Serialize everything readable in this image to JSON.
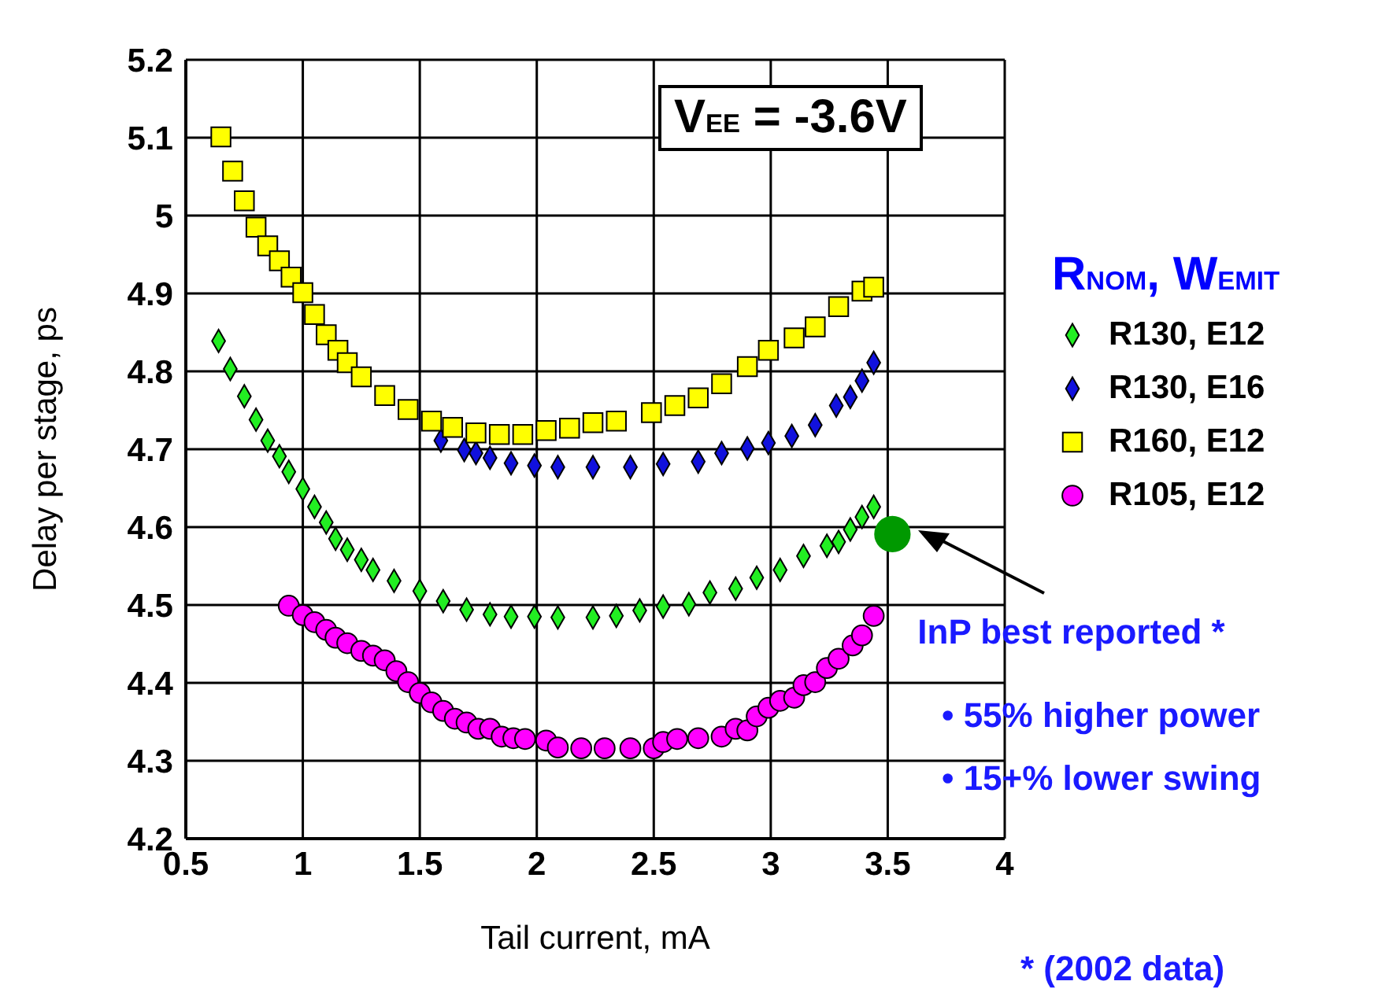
{
  "chart_data": {
    "type": "scatter",
    "xlabel": "Tail current, mA",
    "ylabel": "Delay per stage, ps",
    "legend_title": "R$_{NOM}$,  W$_{EMIT}$",
    "xlim": [
      0.5,
      4
    ],
    "xticks": [
      0.5,
      1,
      1.5,
      2,
      2.5,
      3,
      3.5,
      4
    ],
    "ylim": [
      4.2,
      5.2
    ],
    "yticks": [
      4.2,
      4.3,
      4.4,
      4.5,
      4.6,
      4.7,
      4.8,
      4.9,
      5,
      5.1,
      5.2
    ],
    "grid": true,
    "legend": "right",
    "series": [
      {
        "name": "R130, E12",
        "color": "#22ee22",
        "marker": "diamond",
        "x": [
          0.64,
          0.69,
          0.75,
          0.8,
          0.85,
          0.9,
          0.94,
          1.0,
          1.05,
          1.1,
          1.14,
          1.19,
          1.25,
          1.3,
          1.39,
          1.5,
          1.6,
          1.7,
          1.8,
          1.89,
          1.99,
          2.09,
          2.24,
          2.34,
          2.44,
          2.54,
          2.65,
          2.74,
          2.85,
          2.94,
          3.04,
          3.14,
          3.24,
          3.29,
          3.34,
          3.39,
          3.44
        ],
        "values": [
          4.839,
          4.803,
          4.768,
          4.738,
          4.711,
          4.691,
          4.671,
          4.649,
          4.626,
          4.606,
          4.585,
          4.571,
          4.558,
          4.545,
          4.531,
          4.518,
          4.505,
          4.494,
          4.488,
          4.485,
          4.485,
          4.484,
          4.484,
          4.486,
          4.493,
          4.498,
          4.501,
          4.516,
          4.521,
          4.535,
          4.545,
          4.563,
          4.576,
          4.581,
          4.597,
          4.613,
          4.626
        ]
      },
      {
        "name": "R130, E16",
        "color": "#1111dd",
        "marker": "diamond",
        "x": [
          1.59,
          1.69,
          1.74,
          1.8,
          1.89,
          1.99,
          2.09,
          2.24,
          2.4,
          2.54,
          2.69,
          2.79,
          2.9,
          2.99,
          3.09,
          3.19,
          3.28,
          3.34,
          3.39,
          3.44
        ],
        "values": [
          4.711,
          4.699,
          4.695,
          4.689,
          4.682,
          4.679,
          4.677,
          4.677,
          4.677,
          4.681,
          4.684,
          4.695,
          4.701,
          4.708,
          4.717,
          4.731,
          4.756,
          4.767,
          4.788,
          4.811
        ]
      },
      {
        "name": "R160, E12",
        "color": "#ffff00",
        "marker": "square",
        "x": [
          0.65,
          0.7,
          0.75,
          0.8,
          0.85,
          0.9,
          0.95,
          1.0,
          1.05,
          1.1,
          1.15,
          1.19,
          1.25,
          1.35,
          1.45,
          1.55,
          1.64,
          1.74,
          1.84,
          1.94,
          2.04,
          2.14,
          2.24,
          2.34,
          2.49,
          2.59,
          2.69,
          2.79,
          2.9,
          2.99,
          3.1,
          3.19,
          3.29,
          3.39,
          3.44
        ],
        "values": [
          5.101,
          5.057,
          5.019,
          4.985,
          4.961,
          4.942,
          4.921,
          4.901,
          4.873,
          4.847,
          4.827,
          4.811,
          4.793,
          4.769,
          4.751,
          4.736,
          4.728,
          4.721,
          4.719,
          4.719,
          4.724,
          4.727,
          4.734,
          4.736,
          4.747,
          4.756,
          4.766,
          4.784,
          4.806,
          4.827,
          4.843,
          4.857,
          4.883,
          4.903,
          4.908
        ]
      },
      {
        "name": "R105, E12",
        "color": "#ff00ff",
        "marker": "circle",
        "x": [
          0.94,
          1.0,
          1.05,
          1.1,
          1.14,
          1.19,
          1.25,
          1.3,
          1.35,
          1.4,
          1.45,
          1.5,
          1.55,
          1.6,
          1.65,
          1.7,
          1.75,
          1.8,
          1.85,
          1.9,
          1.95,
          2.04,
          2.09,
          2.19,
          2.29,
          2.4,
          2.5,
          2.54,
          2.6,
          2.69,
          2.79,
          2.85,
          2.9,
          2.94,
          2.99,
          3.04,
          3.1,
          3.14,
          3.19,
          3.24,
          3.29,
          3.35,
          3.39,
          3.44
        ],
        "values": [
          4.499,
          4.487,
          4.478,
          4.468,
          4.458,
          4.451,
          4.441,
          4.435,
          4.429,
          4.415,
          4.401,
          4.387,
          4.375,
          4.364,
          4.354,
          4.349,
          4.341,
          4.341,
          4.331,
          4.329,
          4.328,
          4.326,
          4.317,
          4.316,
          4.316,
          4.316,
          4.316,
          4.324,
          4.328,
          4.329,
          4.331,
          4.341,
          4.339,
          4.357,
          4.368,
          4.377,
          4.381,
          4.397,
          4.401,
          4.419,
          4.431,
          4.448,
          4.461,
          4.486
        ]
      },
      {
        "color": "#009900",
        "marker": "circle",
        "x": [
          3.52
        ],
        "values": [
          4.591
        ]
      }
    ],
    "annotations": [
      "V$_{EE}$ = -3.6V",
      {
        "text": "InP best reported *",
        "x": 3.52,
        "y": 4.591
      },
      "• 55% higher power",
      "• 15+% lower swing",
      "* (2002 data)"
    ]
  }
}
